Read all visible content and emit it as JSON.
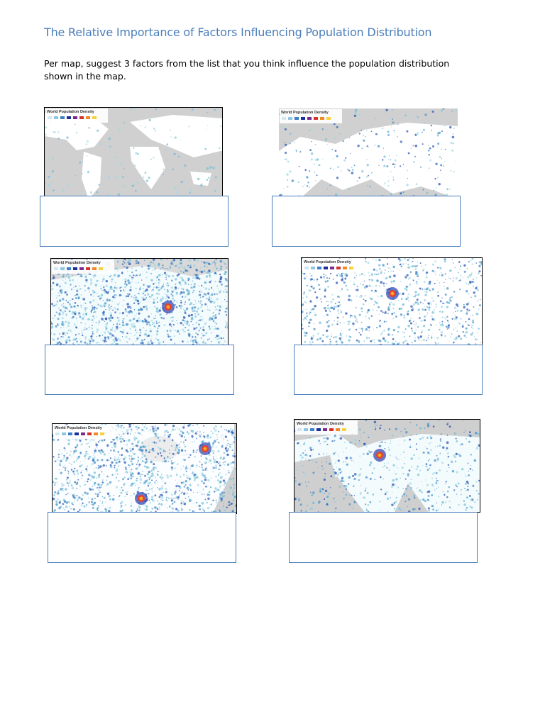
{
  "header": {
    "title": "The Relative Importance of Factors Influencing Population Distribution"
  },
  "instructions": "Per map, suggest 3 factors from the list that you think influence the population distribution shown in the map.",
  "maps": [
    {
      "label": "World Population Density"
    },
    {
      "label": "World Population Density"
    },
    {
      "label": "World Population Density"
    },
    {
      "label": "World Population Density"
    },
    {
      "label": "World Population Density"
    },
    {
      "label": "World Population Density"
    }
  ]
}
